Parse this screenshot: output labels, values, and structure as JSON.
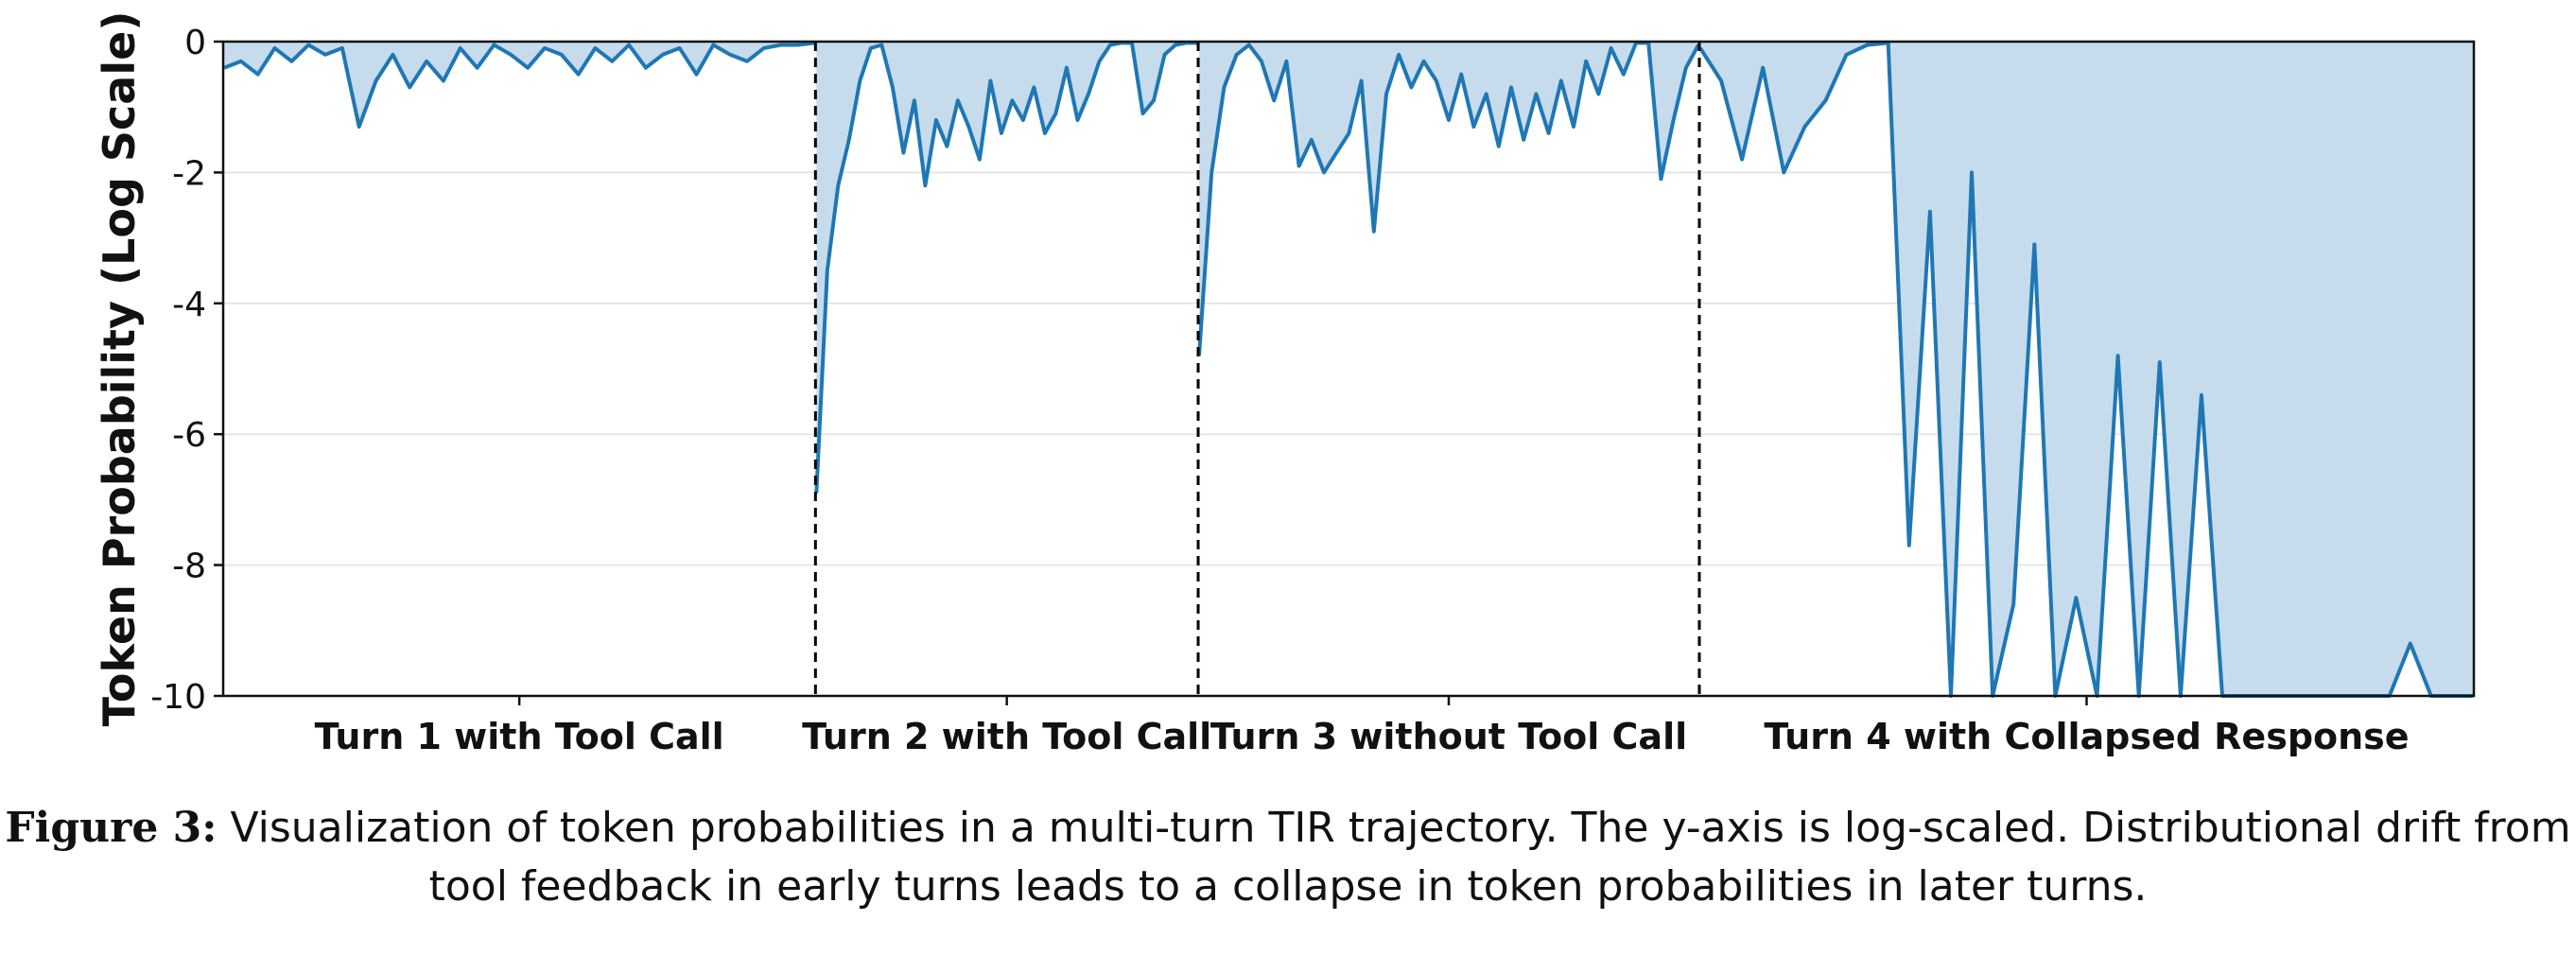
{
  "caption": {
    "label": "Figure 3:",
    "text": "Visualization of token probabilities in a multi-turn TIR trajectory. The y-axis is log-scaled. Distributional drift from tool feedback in early turns leads to a collapse in token probabilities in later turns."
  },
  "colors": {
    "line": "#1f77b4",
    "fill": "#c6dcec",
    "grid": "#e6e6e6",
    "divider": "#000000"
  },
  "chart_data": {
    "type": "line",
    "title": "",
    "xlabel": "",
    "ylabel": "Token Probability (Log Scale)",
    "ylim": [
      -10,
      0
    ],
    "yticks": [
      0,
      -2,
      -4,
      -6,
      -8,
      -10
    ],
    "ytick_labels": [
      "0",
      "-2",
      "-4",
      "-6",
      "-8",
      "-10"
    ],
    "grid": "horizontal",
    "fill_between": "line and 0",
    "segments": [
      {
        "label": "Turn 1 with Tool Call",
        "length": 650,
        "values": [
          -0.4,
          -0.3,
          -0.5,
          -0.1,
          -0.3,
          -0.05,
          -0.2,
          -0.1,
          -1.3,
          -0.6,
          -0.2,
          -0.7,
          -0.3,
          -0.6,
          -0.1,
          -0.4,
          -0.05,
          -0.2,
          -0.4,
          -0.1,
          -0.2,
          -0.5,
          -0.1,
          -0.3,
          -0.05,
          -0.4,
          -0.2,
          -0.1,
          -0.5,
          -0.05,
          -0.2,
          -0.3,
          -0.1,
          -0.05,
          -0.05,
          -0.02
        ]
      },
      {
        "label": "Turn 2 with Tool Call",
        "length": 420,
        "values": [
          -6.9,
          -3.5,
          -2.2,
          -1.5,
          -0.6,
          -0.1,
          -0.05,
          -0.7,
          -1.7,
          -0.9,
          -2.2,
          -1.2,
          -1.6,
          -0.9,
          -1.3,
          -1.8,
          -0.6,
          -1.4,
          -0.9,
          -1.2,
          -0.7,
          -1.4,
          -1.1,
          -0.4,
          -1.2,
          -0.8,
          -0.3,
          -0.05,
          -0.02,
          -0.02,
          -1.1,
          -0.9,
          -0.2,
          -0.05,
          -0.02,
          -0.02
        ]
      },
      {
        "label": "Turn 3 without Tool Call",
        "length": 550,
        "values": [
          -4.8,
          -2.0,
          -0.7,
          -0.2,
          -0.05,
          -0.3,
          -0.9,
          -0.3,
          -1.9,
          -1.5,
          -2.0,
          -1.7,
          -1.4,
          -0.6,
          -2.9,
          -0.8,
          -0.2,
          -0.7,
          -0.3,
          -0.6,
          -1.2,
          -0.5,
          -1.3,
          -0.8,
          -1.6,
          -0.7,
          -1.5,
          -0.8,
          -1.4,
          -0.6,
          -1.3,
          -0.3,
          -0.8,
          -0.1,
          -0.5,
          -0.02,
          -0.02,
          -2.1,
          -1.2,
          -0.4,
          -0.05
        ]
      },
      {
        "label": "Turn 4 with Collapsed Response",
        "length": 850,
        "values": [
          -0.1,
          -0.6,
          -1.8,
          -0.4,
          -2.0,
          -1.3,
          -0.9,
          -0.2,
          -0.05,
          -0.02,
          -7.7,
          -2.6,
          -10,
          -2.0,
          -10,
          -8.6,
          -3.1,
          -10,
          -8.5,
          -10,
          -4.8,
          -10,
          -4.9,
          -10,
          -5.4,
          -10,
          -10,
          -10,
          -10,
          -10,
          -10,
          -10,
          -10,
          -10,
          -9.2,
          -10,
          -10,
          -10
        ]
      }
    ]
  }
}
